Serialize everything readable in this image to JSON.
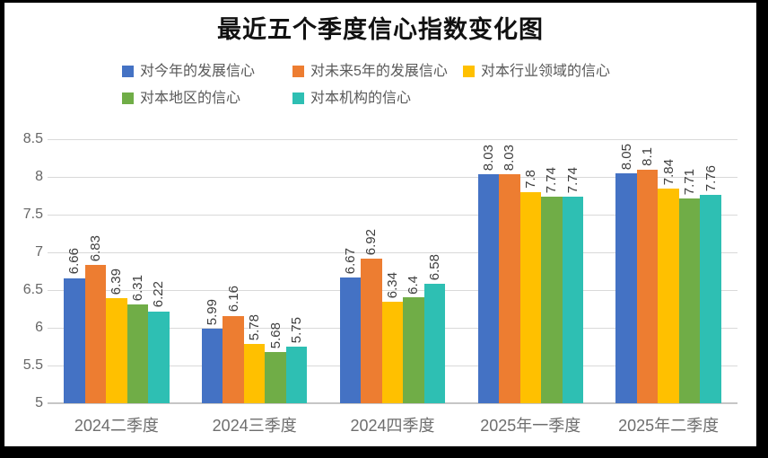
{
  "chart": {
    "title": "最近五个季度信心指数变化图"
  },
  "chart_data": {
    "type": "bar",
    "title": "最近五个季度信心指数变化图",
    "categories": [
      "2024二季度",
      "2024三季度",
      "2024四季度",
      "2025年一季度",
      "2025年二季度"
    ],
    "series": [
      {
        "name": "对今年的发展信心",
        "color": "#4472C4",
        "values": [
          6.66,
          5.99,
          6.67,
          8.03,
          8.05
        ]
      },
      {
        "name": "对未来5年的发展信心",
        "color": "#ED7D31",
        "values": [
          6.83,
          6.16,
          6.92,
          8.03,
          8.1
        ]
      },
      {
        "name": "对本行业领域的信心",
        "color": "#FFC000",
        "values": [
          6.39,
          5.78,
          6.34,
          7.8,
          7.84
        ]
      },
      {
        "name": "对本地区的信心",
        "color": "#70AD47",
        "values": [
          6.31,
          5.68,
          6.4,
          7.74,
          7.71
        ]
      },
      {
        "name": "对本机构的信心",
        "color": "#2EBFB3",
        "values": [
          6.22,
          5.75,
          6.58,
          7.74,
          7.76
        ]
      }
    ],
    "ylim": [
      5,
      8.5
    ],
    "ytick_labels": [
      "8.5",
      "8",
      "7.5",
      "7",
      "6.5",
      "6",
      "5.5",
      "5"
    ],
    "grid": true,
    "legend_position": "top",
    "value_labels_rotated": true
  },
  "colors": {
    "gridline": "#d9d9d9",
    "axis_text": "#666666",
    "value_label": "#3d3d3d",
    "legend_text": "#595959",
    "background": "#ffffff",
    "frame": "#000000"
  }
}
